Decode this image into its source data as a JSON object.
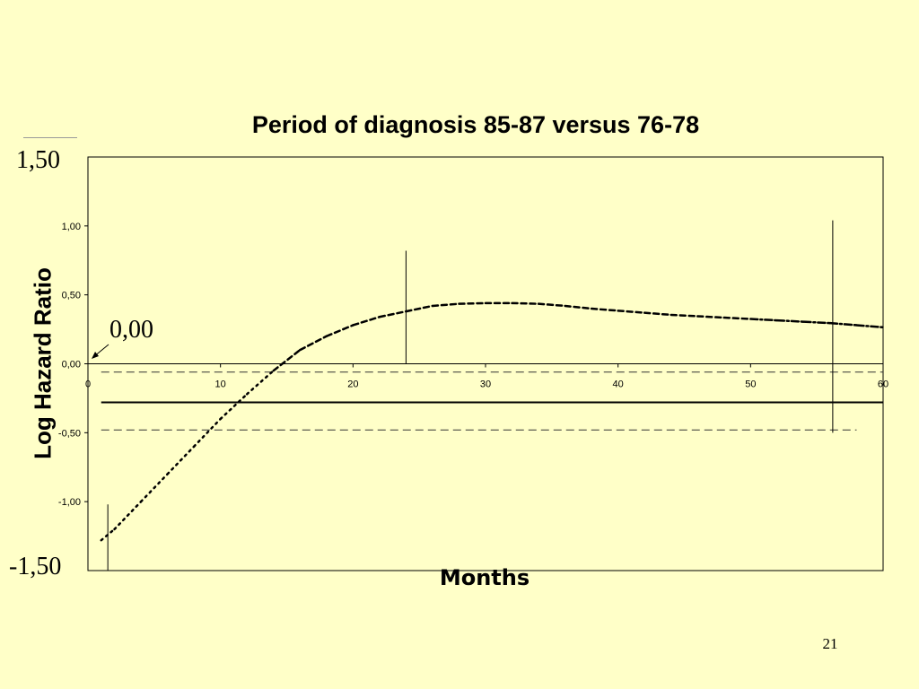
{
  "title": "Period of diagnosis 85-87 versus 76-78",
  "annotations": {
    "y_top": "1,50",
    "y_bottom": "-1,50",
    "zero": "0,00"
  },
  "page_number": "21",
  "chart_data": {
    "type": "line",
    "title": "Period of diagnosis 85-87 versus 76-78",
    "xlabel": "Months",
    "ylabel": "Log Hazard Ratio",
    "xlim": [
      0,
      60
    ],
    "ylim": [
      -1.5,
      1.5
    ],
    "x_ticks": [
      "0",
      "10",
      "20",
      "30",
      "40",
      "50",
      "60"
    ],
    "y_ticks": [
      {
        "value": 1.0,
        "label": "1,00"
      },
      {
        "value": 0.5,
        "label": "0,50"
      },
      {
        "value": 0.0,
        "label": "0,00"
      },
      {
        "value": -0.5,
        "label": "-0,50"
      },
      {
        "value": -1.0,
        "label": "-1,00"
      }
    ],
    "grid": false,
    "series": [
      {
        "style": "dotted-dashed curve",
        "x": [
          1,
          2,
          4,
          6,
          8,
          10,
          12,
          14,
          16,
          18,
          20,
          22,
          24,
          26,
          28,
          30,
          32,
          34,
          36,
          38,
          40,
          42,
          44,
          46,
          48,
          50,
          52,
          54,
          56,
          58,
          60
        ],
        "y": [
          -1.28,
          -1.2,
          -1.0,
          -0.8,
          -0.6,
          -0.4,
          -0.22,
          -0.05,
          0.1,
          0.2,
          0.28,
          0.34,
          0.38,
          0.42,
          0.435,
          0.44,
          0.44,
          0.435,
          0.42,
          0.4,
          0.385,
          0.37,
          0.355,
          0.345,
          0.335,
          0.325,
          0.315,
          0.305,
          0.295,
          0.28,
          0.265
        ]
      }
    ],
    "reference_lines": [
      {
        "style": "solid",
        "y": -0.28,
        "x_range": [
          1,
          60
        ]
      },
      {
        "style": "dashed",
        "y": -0.06,
        "x_range": [
          1,
          60
        ]
      },
      {
        "style": "dashed",
        "y": -0.48,
        "x_range": [
          1,
          58
        ]
      }
    ],
    "vertical_lines": [
      {
        "x": 1.5,
        "y_range": [
          -1.5,
          -1.02
        ]
      },
      {
        "x": 24,
        "y_range": [
          0.0,
          0.82
        ]
      },
      {
        "x": 56.2,
        "y_range": [
          -0.5,
          1.04
        ]
      }
    ]
  }
}
